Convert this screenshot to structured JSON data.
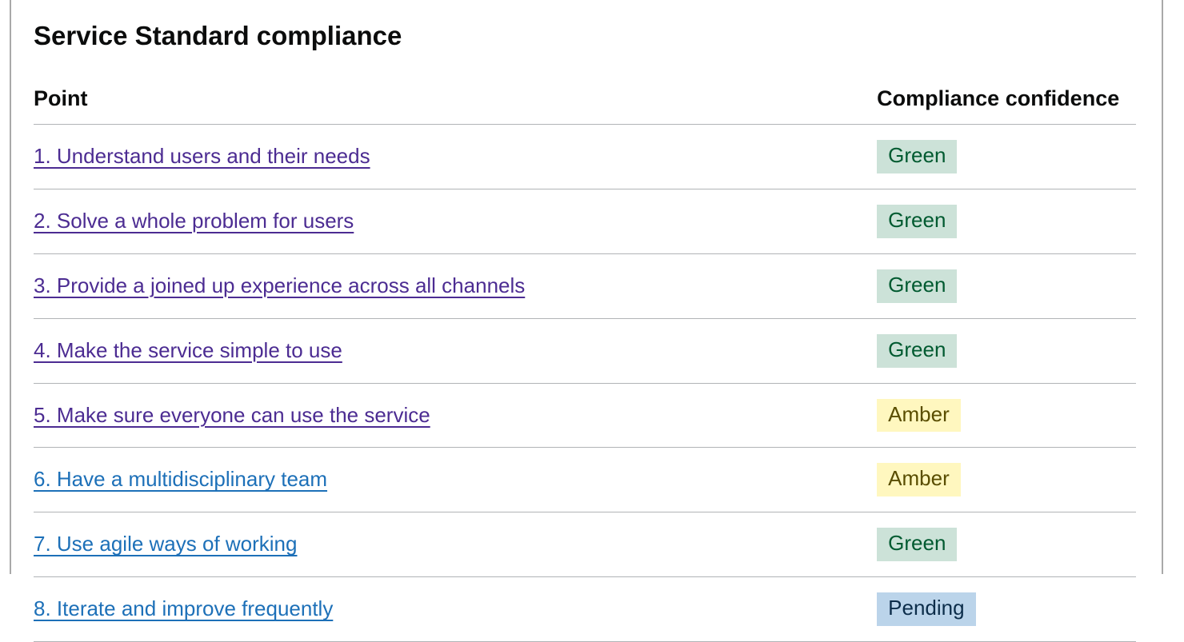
{
  "heading": "Service Standard compliance",
  "table": {
    "headers": {
      "point": "Point",
      "confidence": "Compliance confidence"
    },
    "rows": [
      {
        "point": "1. Understand users and their needs",
        "status": "Green",
        "link_state": "visited"
      },
      {
        "point": "2. Solve a whole problem for users",
        "status": "Green",
        "link_state": "visited"
      },
      {
        "point": "3. Provide a joined up experience across all channels",
        "status": "Green",
        "link_state": "visited"
      },
      {
        "point": "4. Make the service simple to use",
        "status": "Green",
        "link_state": "visited"
      },
      {
        "point": "5. Make sure everyone can use the service",
        "status": "Amber",
        "link_state": "visited"
      },
      {
        "point": "6. Have a multidisciplinary team",
        "status": "Amber",
        "link_state": "unvisited"
      },
      {
        "point": "7. Use agile ways of working",
        "status": "Green",
        "link_state": "unvisited"
      },
      {
        "point": "8. Iterate and improve frequently",
        "status": "Pending",
        "link_state": "unvisited"
      }
    ]
  },
  "colors": {
    "text": "#0b0c0c",
    "row_border": "#b1b4b6",
    "panel_edge": "#a9a9a9",
    "link": "#1d70b8",
    "link_visited": "#4c2c92",
    "tags": {
      "Green": {
        "background": "#cce2d8",
        "text": "#005a30"
      },
      "Amber": {
        "background": "#fff7bf",
        "text": "#594d00"
      },
      "Pending": {
        "background": "#bbd4ea",
        "text": "#0c2d4a"
      }
    }
  }
}
